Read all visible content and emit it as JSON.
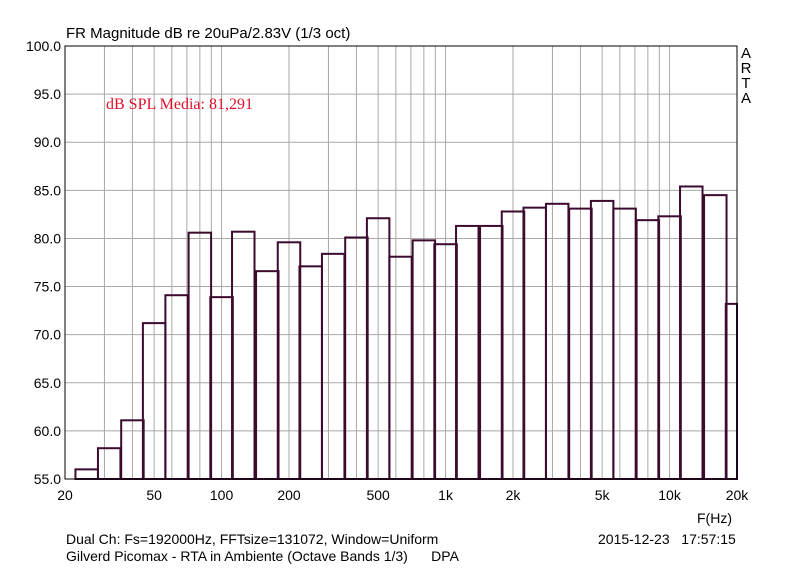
{
  "chart_data": {
    "type": "bar",
    "title": "FR Magnitude dB re 20uPa/2.83V (1/3 oct)",
    "xlabel": "F(Hz)",
    "ylabel": "",
    "xscale": "log",
    "xlim": [
      20,
      20000
    ],
    "ylim": [
      55,
      100
    ],
    "yticks": [
      "55.0",
      "60.0",
      "65.0",
      "70.0",
      "75.0",
      "80.0",
      "85.0",
      "90.0",
      "95.0",
      "100.0"
    ],
    "xticks": [
      {
        "value": 20,
        "label": "20"
      },
      {
        "value": 50,
        "label": "50"
      },
      {
        "value": 100,
        "label": "100"
      },
      {
        "value": 200,
        "label": "200"
      },
      {
        "value": 500,
        "label": "500"
      },
      {
        "value": 1000,
        "label": "1k"
      },
      {
        "value": 2000,
        "label": "2k"
      },
      {
        "value": 5000,
        "label": "5k"
      },
      {
        "value": 10000,
        "label": "10k"
      },
      {
        "value": 20000,
        "label": "20k"
      }
    ],
    "grid": true,
    "bar_color": "#3c0a2e",
    "annotation": {
      "text": "dB SPL Media: 81,291",
      "color": "#e0102a"
    },
    "bands": [
      {
        "center": 25,
        "value": 56.0
      },
      {
        "center": 31.5,
        "value": 58.2
      },
      {
        "center": 40,
        "value": 61.1
      },
      {
        "center": 50,
        "value": 71.2
      },
      {
        "center": 63,
        "value": 74.1
      },
      {
        "center": 80,
        "value": 80.6
      },
      {
        "center": 100,
        "value": 73.9
      },
      {
        "center": 125,
        "value": 80.7
      },
      {
        "center": 160,
        "value": 76.6
      },
      {
        "center": 200,
        "value": 79.6
      },
      {
        "center": 250,
        "value": 77.1
      },
      {
        "center": 315,
        "value": 78.4
      },
      {
        "center": 400,
        "value": 80.1
      },
      {
        "center": 500,
        "value": 82.1
      },
      {
        "center": 630,
        "value": 78.1
      },
      {
        "center": 800,
        "value": 79.8
      },
      {
        "center": 1000,
        "value": 79.4
      },
      {
        "center": 1250,
        "value": 81.3
      },
      {
        "center": 1600,
        "value": 81.3
      },
      {
        "center": 2000,
        "value": 82.8
      },
      {
        "center": 2500,
        "value": 83.2
      },
      {
        "center": 3150,
        "value": 83.6
      },
      {
        "center": 4000,
        "value": 83.1
      },
      {
        "center": 5000,
        "value": 83.9
      },
      {
        "center": 6300,
        "value": 83.1
      },
      {
        "center": 8000,
        "value": 81.9
      },
      {
        "center": 10000,
        "value": 82.3
      },
      {
        "center": 12500,
        "value": 85.4
      },
      {
        "center": 16000,
        "value": 84.5
      },
      {
        "center": 20000,
        "value": 73.2
      }
    ]
  },
  "logo_letters": [
    "A",
    "R",
    "T",
    "A"
  ],
  "footer": {
    "line1": "Dual Ch: Fs=192000Hz, FFTsize=131072, Window=Uniform",
    "line2": "Gilverd Picomax - RTA in Ambiente (Octave Bands 1/3)      DPA",
    "datetime": "2015-12-23   17:57:15"
  }
}
